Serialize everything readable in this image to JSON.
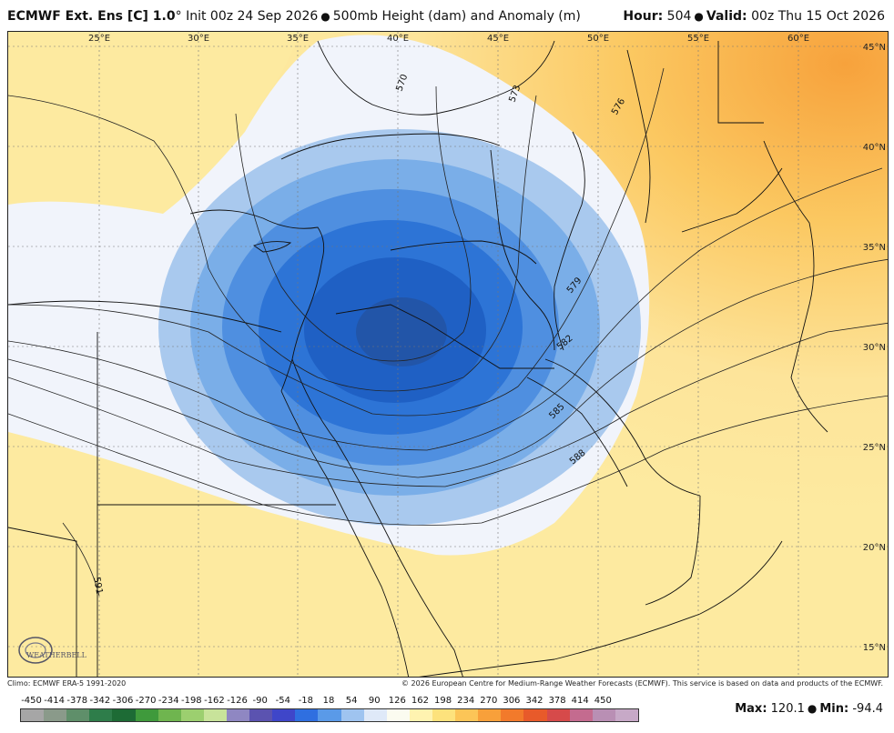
{
  "header": {
    "model": "ECMWF Ext.  Ens [C] 1.0",
    "degree": "°",
    "init": "Init 00z 24 Sep 2026",
    "field": "500mb Height (dam) and Anomaly (m)",
    "hour_label": "Hour:",
    "hour_value": "504",
    "valid_label": "Valid:",
    "valid_value": "00z Thu 15 Oct 2026"
  },
  "map": {
    "lon_labels": [
      "25°E",
      "30°E",
      "35°E",
      "40°E",
      "45°E",
      "50°E",
      "55°E",
      "60°E"
    ],
    "lat_labels": [
      "45°N",
      "40°N",
      "35°N",
      "30°N",
      "25°N",
      "20°N",
      "15°N"
    ],
    "contour_labels": [
      "570",
      "573",
      "576",
      "579",
      "582",
      "585",
      "588",
      "591"
    ],
    "anomaly_center": {
      "lat": 30,
      "lon": 39,
      "value": -94.4
    },
    "colors": {
      "warm_far": "#f7a23c",
      "warm": "#fcd67a",
      "warm_light": "#fdeaa0",
      "pale": "#f1f4fb",
      "blue1": "#a9c9ee",
      "blue2": "#7aaee8",
      "blue3": "#4f8fe0",
      "blue4": "#2d74d6",
      "blue5": "#1f60c4",
      "blue6": "#2255a8"
    },
    "logo_text": "WEATHERBELL"
  },
  "footer": {
    "climo": "Climo: ECMWF ERA-5 1991-2020",
    "copyright": "© 2026 European Centre for Medium-Range Weather Forecasts (ECMWF). This service is based on data and products of the ECMWF."
  },
  "legend": {
    "ticks": [
      "-450",
      "-414",
      "-378",
      "-342",
      "-306",
      "-270",
      "-234",
      "-198",
      "-162",
      "-126",
      "-90",
      "-54",
      "-18",
      "18",
      "54",
      "90",
      "126",
      "162",
      "198",
      "234",
      "270",
      "306",
      "342",
      "378",
      "414",
      "450"
    ],
    "colors": [
      "#a6a6a6",
      "#8a9a8a",
      "#5f8f6a",
      "#2e7d4a",
      "#1d6b35",
      "#3f9a3c",
      "#6fb54f",
      "#9ccf6f",
      "#c8e39a",
      "#8f87c2",
      "#5b53b0",
      "#3f46c9",
      "#2f6fe0",
      "#5a9ae8",
      "#9fc4f0",
      "#dfe9f8",
      "#fbfbf0",
      "#fff3b0",
      "#fde27c",
      "#fcc557",
      "#f8a03a",
      "#f27a2b",
      "#e85a2a",
      "#d64a4a",
      "#c46b8f",
      "#b98fb4",
      "#c7a9c7"
    ],
    "max_label": "Max:",
    "max_value": "120.1",
    "min_label": "Min:",
    "min_value": "-94.4"
  }
}
